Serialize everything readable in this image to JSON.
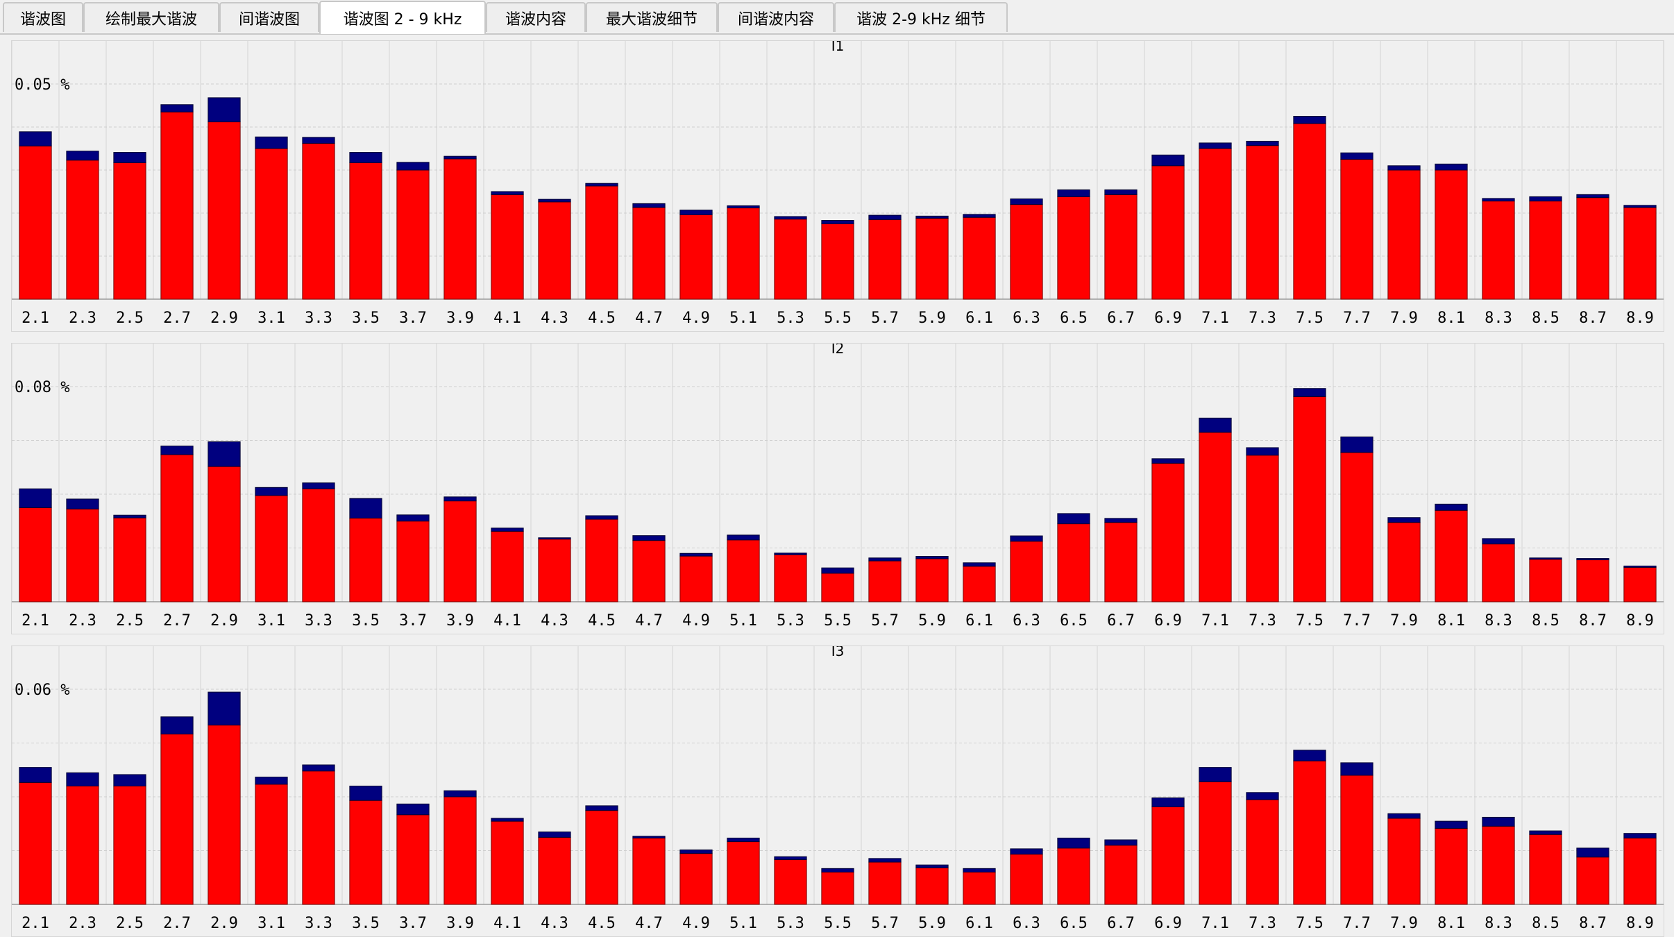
{
  "tabs": [
    {
      "label": "谐波图",
      "active": false
    },
    {
      "label": "绘制最大谐波",
      "active": false
    },
    {
      "label": "间谐波图",
      "active": false
    },
    {
      "label": "谐波图 2 - 9 kHz",
      "active": true
    },
    {
      "label": "谐波内容",
      "active": false
    },
    {
      "label": "最大谐波细节",
      "active": false
    },
    {
      "label": "间谐波内容",
      "active": false
    },
    {
      "label": "谐波 2-9 kHz 细节",
      "active": false
    }
  ],
  "colors": {
    "bar_main": "#ff0000",
    "bar_top": "#00007f",
    "grid": "#cfcfcf"
  },
  "chart_data": [
    {
      "type": "bar",
      "title": "I1",
      "categories": [
        "2.1",
        "2.3",
        "2.5",
        "2.7",
        "2.9",
        "3.1",
        "3.3",
        "3.5",
        "3.7",
        "3.9",
        "4.1",
        "4.3",
        "4.5",
        "4.7",
        "4.9",
        "5.1",
        "5.3",
        "5.5",
        "5.7",
        "5.9",
        "6.1",
        "6.3",
        "6.5",
        "6.7",
        "6.9",
        "7.1",
        "7.3",
        "7.5",
        "7.7",
        "7.9",
        "8.1",
        "8.3",
        "8.5",
        "8.7",
        "8.9"
      ],
      "ylim": [
        0,
        0.06
      ],
      "ytick_label": "0.05 %",
      "ytick_value": 0.05,
      "grid_step": 0.01,
      "series": [
        {
          "values": [
            0.0356,
            0.0323,
            0.0317,
            0.0435,
            0.0412,
            0.035,
            0.0362,
            0.0317,
            0.03,
            0.0326,
            0.0243,
            0.0226,
            0.0263,
            0.0213,
            0.0196,
            0.0212,
            0.0186,
            0.0175,
            0.0185,
            0.0188,
            0.019,
            0.022,
            0.0238,
            0.0243,
            0.031,
            0.035,
            0.0357,
            0.0408,
            0.0325,
            0.03,
            0.03,
            0.0228,
            0.0228,
            0.0236,
            0.0213
          ]
        },
        {
          "values": [
            0.0033,
            0.0021,
            0.0024,
            0.0017,
            0.0056,
            0.0027,
            0.0014,
            0.0024,
            0.0018,
            0.0006,
            0.0007,
            0.0006,
            0.0006,
            0.0009,
            0.0011,
            0.0005,
            0.0006,
            0.0008,
            0.001,
            0.0005,
            0.0007,
            0.0013,
            0.0016,
            0.0011,
            0.0025,
            0.0013,
            0.001,
            0.0017,
            0.0015,
            0.001,
            0.0014,
            0.0006,
            0.001,
            0.0007,
            0.0005
          ]
        }
      ]
    },
    {
      "type": "bar",
      "title": "I2",
      "categories": [
        "2.1",
        "2.3",
        "2.5",
        "2.7",
        "2.9",
        "3.1",
        "3.3",
        "3.5",
        "3.7",
        "3.9",
        "4.1",
        "4.3",
        "4.5",
        "4.7",
        "4.9",
        "5.1",
        "5.3",
        "5.5",
        "5.7",
        "5.9",
        "6.1",
        "6.3",
        "6.5",
        "6.7",
        "6.9",
        "7.1",
        "7.3",
        "7.5",
        "7.7",
        "7.9",
        "8.1",
        "8.3",
        "8.5",
        "8.7",
        "8.9"
      ],
      "ylim": [
        0,
        0.096
      ],
      "ytick_label": "0.08 %",
      "ytick_value": 0.08,
      "grid_step": 0.02,
      "series": [
        {
          "values": [
            0.035,
            0.0345,
            0.0312,
            0.0547,
            0.0503,
            0.0395,
            0.042,
            0.0311,
            0.03,
            0.0375,
            0.0262,
            0.0233,
            0.0307,
            0.0228,
            0.017,
            0.023,
            0.0175,
            0.0106,
            0.0152,
            0.016,
            0.0132,
            0.0225,
            0.029,
            0.0295,
            0.0515,
            0.063,
            0.0545,
            0.0763,
            0.0555,
            0.0295,
            0.034,
            0.0215,
            0.0158,
            0.0156,
            0.0128
          ]
        },
        {
          "values": [
            0.007,
            0.0037,
            0.001,
            0.0032,
            0.0092,
            0.003,
            0.0022,
            0.0073,
            0.0023,
            0.0015,
            0.0012,
            0.0005,
            0.0013,
            0.0018,
            0.001,
            0.0018,
            0.0006,
            0.002,
            0.0011,
            0.0009,
            0.0013,
            0.002,
            0.0038,
            0.0015,
            0.0017,
            0.0053,
            0.0028,
            0.003,
            0.0058,
            0.0018,
            0.0023,
            0.002,
            0.0005,
            0.0005,
            0.0005
          ]
        }
      ]
    },
    {
      "type": "bar",
      "title": "I3",
      "categories": [
        "2.1",
        "2.3",
        "2.5",
        "2.7",
        "2.9",
        "3.1",
        "3.3",
        "3.5",
        "3.7",
        "3.9",
        "4.1",
        "4.3",
        "4.5",
        "4.7",
        "4.9",
        "5.1",
        "5.3",
        "5.5",
        "5.7",
        "5.9",
        "6.1",
        "6.3",
        "6.5",
        "6.7",
        "6.9",
        "7.1",
        "7.3",
        "7.5",
        "7.7",
        "7.9",
        "8.1",
        "8.3",
        "8.5",
        "8.7",
        "8.9"
      ],
      "ylim": [
        0,
        0.072
      ],
      "ytick_label": "0.06 %",
      "ytick_value": 0.06,
      "grid_step": 0.015,
      "series": [
        {
          "values": [
            0.034,
            0.033,
            0.033,
            0.0475,
            0.05,
            0.0335,
            0.0372,
            0.029,
            0.025,
            0.03,
            0.0232,
            0.0187,
            0.0262,
            0.0185,
            0.0142,
            0.0175,
            0.0125,
            0.009,
            0.0118,
            0.0102,
            0.009,
            0.014,
            0.0157,
            0.0165,
            0.0272,
            0.0342,
            0.0292,
            0.04,
            0.036,
            0.024,
            0.0212,
            0.0218,
            0.0195,
            0.0132,
            0.0185
          ]
        },
        {
          "values": [
            0.0042,
            0.0037,
            0.0032,
            0.0048,
            0.0092,
            0.002,
            0.0017,
            0.004,
            0.003,
            0.0017,
            0.0008,
            0.0015,
            0.0013,
            0.0005,
            0.001,
            0.001,
            0.0008,
            0.001,
            0.001,
            0.0008,
            0.001,
            0.0015,
            0.0028,
            0.0015,
            0.0025,
            0.004,
            0.002,
            0.003,
            0.0035,
            0.0013,
            0.002,
            0.0025,
            0.001,
            0.0025,
            0.0013
          ]
        }
      ]
    }
  ]
}
